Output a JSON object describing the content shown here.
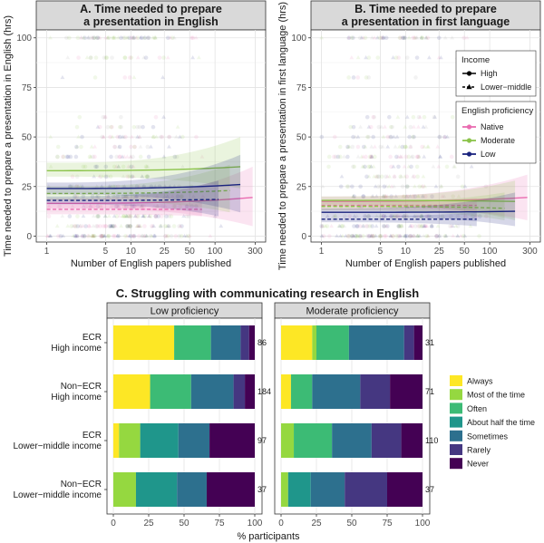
{
  "chart_data": [
    {
      "id": "A",
      "type": "scatter",
      "title": "A. Time needed to prepare\na presentation in English",
      "xlabel": "Number of English papers published",
      "ylabel": "Time needed to prepare a presentation in English (hrs)",
      "x_scale": "log",
      "xlim": [
        0.75,
        400
      ],
      "ylim": [
        -3,
        104
      ],
      "x_ticks": [
        1,
        5,
        10,
        25,
        50,
        100,
        300
      ],
      "y_ticks": [
        0,
        25,
        50,
        75,
        100
      ],
      "series": [
        {
          "name": "Native",
          "income": "High",
          "color": "#e96cb0",
          "x": [
            1,
            280
          ],
          "y": [
            16.5,
            19.5
          ],
          "ci_low": [
            14,
            5
          ],
          "ci_high": [
            19,
            35
          ]
        },
        {
          "name": "Native",
          "income": "Lower-middle",
          "color": "#e96cb0",
          "x": [
            1,
            70
          ],
          "y": [
            13.5,
            13.5
          ],
          "ci_low": [
            11,
            10
          ],
          "ci_high": [
            16,
            17
          ]
        },
        {
          "name": "Moderate",
          "income": "High",
          "color": "#8bc34a",
          "x": [
            1,
            200
          ],
          "y": [
            33,
            35
          ],
          "ci_low": [
            30,
            24
          ],
          "ci_high": [
            37,
            50
          ]
        },
        {
          "name": "Moderate",
          "income": "Lower-middle",
          "color": "#8bc34a",
          "x": [
            1,
            150
          ],
          "y": [
            21.5,
            23
          ],
          "ci_low": [
            18,
            12
          ],
          "ci_high": [
            25,
            36
          ]
        },
        {
          "name": "Low",
          "income": "High",
          "color": "#1a237e",
          "x": [
            1,
            200
          ],
          "y": [
            24,
            26
          ],
          "ci_low": [
            21,
            12
          ],
          "ci_high": [
            27,
            41
          ]
        },
        {
          "name": "Low",
          "income": "Lower-middle",
          "color": "#1a237e",
          "x": [
            1,
            110
          ],
          "y": [
            18,
            18.5
          ],
          "ci_low": [
            16,
            10
          ],
          "ci_high": [
            20,
            28
          ]
        }
      ]
    },
    {
      "id": "B",
      "type": "scatter",
      "title": "B. Time needed to prepare\na presentation in first language",
      "xlabel": "Number of English papers published",
      "ylabel": "Time needed to prepare a presentation in first language (hrs)",
      "x_scale": "log",
      "xlim": [
        0.75,
        400
      ],
      "ylim": [
        -3,
        104
      ],
      "x_ticks": [
        1,
        5,
        10,
        25,
        50,
        100,
        300
      ],
      "y_ticks": [
        0,
        25,
        50,
        75,
        100
      ],
      "series": [
        {
          "name": "Native",
          "income": "High",
          "color": "#e96cb0",
          "x": [
            1,
            280
          ],
          "y": [
            17.5,
            19.5
          ],
          "ci_low": [
            15,
            8
          ],
          "ci_high": [
            20,
            31
          ]
        },
        {
          "name": "Native",
          "income": "Lower-middle",
          "color": "#e96cb0",
          "x": [
            1,
            70
          ],
          "y": [
            15.5,
            15.5
          ],
          "ci_low": [
            13,
            12
          ],
          "ci_high": [
            18,
            19
          ]
        },
        {
          "name": "Moderate",
          "income": "High",
          "color": "#8bc34a",
          "x": [
            1,
            200
          ],
          "y": [
            18,
            17.5
          ],
          "ci_low": [
            16,
            8
          ],
          "ci_high": [
            20,
            28
          ]
        },
        {
          "name": "Moderate",
          "income": "Lower-middle",
          "color": "#8bc34a",
          "x": [
            1,
            150
          ],
          "y": [
            15,
            14
          ],
          "ci_low": [
            13,
            8
          ],
          "ci_high": [
            17,
            22
          ]
        },
        {
          "name": "Low",
          "income": "High",
          "color": "#1a237e",
          "x": [
            1,
            200
          ],
          "y": [
            12,
            12.5
          ],
          "ci_low": [
            10,
            5
          ],
          "ci_high": [
            14,
            22
          ]
        },
        {
          "name": "Low",
          "income": "Lower-middle",
          "color": "#1a237e",
          "x": [
            1,
            70
          ],
          "y": [
            8.5,
            8.5
          ],
          "ci_low": [
            7,
            5
          ],
          "ci_high": [
            10,
            12
          ]
        }
      ]
    },
    {
      "id": "C",
      "type": "bar",
      "stacked": true,
      "orientation": "horizontal",
      "title": "C. Struggling with communicating research in English",
      "xlabel": "% participants",
      "xlim": [
        0,
        100
      ],
      "x_ticks": [
        0,
        25,
        50,
        75,
        100
      ],
      "categories": [
        "ECR\nHigh income",
        "Non−ECR\nHigh income",
        "ECR\nLower−middle income",
        "Non−ECR\nLower−middle income"
      ],
      "legend_title": "",
      "legend": [
        "Always",
        "Most of the time",
        "Often",
        "About half the time",
        "Sometimes",
        "Rarely",
        "Never"
      ],
      "colors": [
        "#fde725",
        "#95d840",
        "#3cbb75",
        "#1f968b",
        "#2d708e",
        "#453781",
        "#440154"
      ],
      "panels": [
        {
          "name": "Low proficiency",
          "n": [
            86,
            184,
            97,
            37
          ],
          "values": [
            [
              43,
              0,
              26,
              0,
              21,
              6,
              4
            ],
            [
              26,
              0,
              29,
              0,
              30,
              8,
              7
            ],
            [
              4,
              15,
              0,
              27,
              22,
              0,
              32
            ],
            [
              0,
              16,
              0,
              29,
              21,
              0,
              34
            ]
          ]
        },
        {
          "name": "Moderate proficiency",
          "n": [
            31,
            71,
            110,
            37
          ],
          "values": [
            [
              22,
              3,
              23,
              0,
              39,
              7,
              6
            ],
            [
              7,
              0,
              15,
              0,
              34,
              21,
              23
            ],
            [
              0,
              9,
              27,
              0,
              28,
              21,
              15
            ],
            [
              0,
              5,
              0,
              16,
              24,
              30,
              25
            ]
          ]
        }
      ]
    }
  ],
  "legend_ab": {
    "income_title": "Income",
    "income_items": [
      "High",
      "Lower−middle"
    ],
    "prof_title": "English proficiency",
    "prof_items": [
      {
        "label": "Native",
        "color": "#e96cb0"
      },
      {
        "label": "Moderate",
        "color": "#8bc34a"
      },
      {
        "label": "Low",
        "color": "#1a237e"
      }
    ]
  }
}
